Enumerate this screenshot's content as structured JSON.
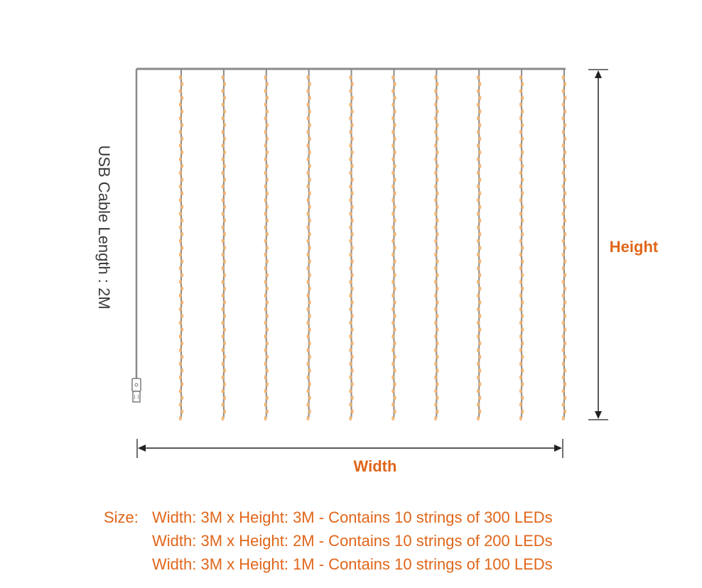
{
  "diagram": {
    "cable_label": "USB Cable Length : 2M",
    "height_label": "Height",
    "width_label": "Width",
    "string_count": 10,
    "colors": {
      "wire": "#8a8a8a",
      "led": "#f2b26b",
      "dimension_line": "#222222",
      "label_accent": "#e0661a",
      "cable_text": "#3a3a3a"
    }
  },
  "size": {
    "prefix": "Size:",
    "options": [
      "Width: 3M x Height: 3M - Contains 10 strings of 300 LEDs",
      "Width: 3M x Height: 2M - Contains 10 strings of 200 LEDs",
      "Width: 3M x Height: 1M - Contains 10 strings of 100 LEDs"
    ]
  }
}
